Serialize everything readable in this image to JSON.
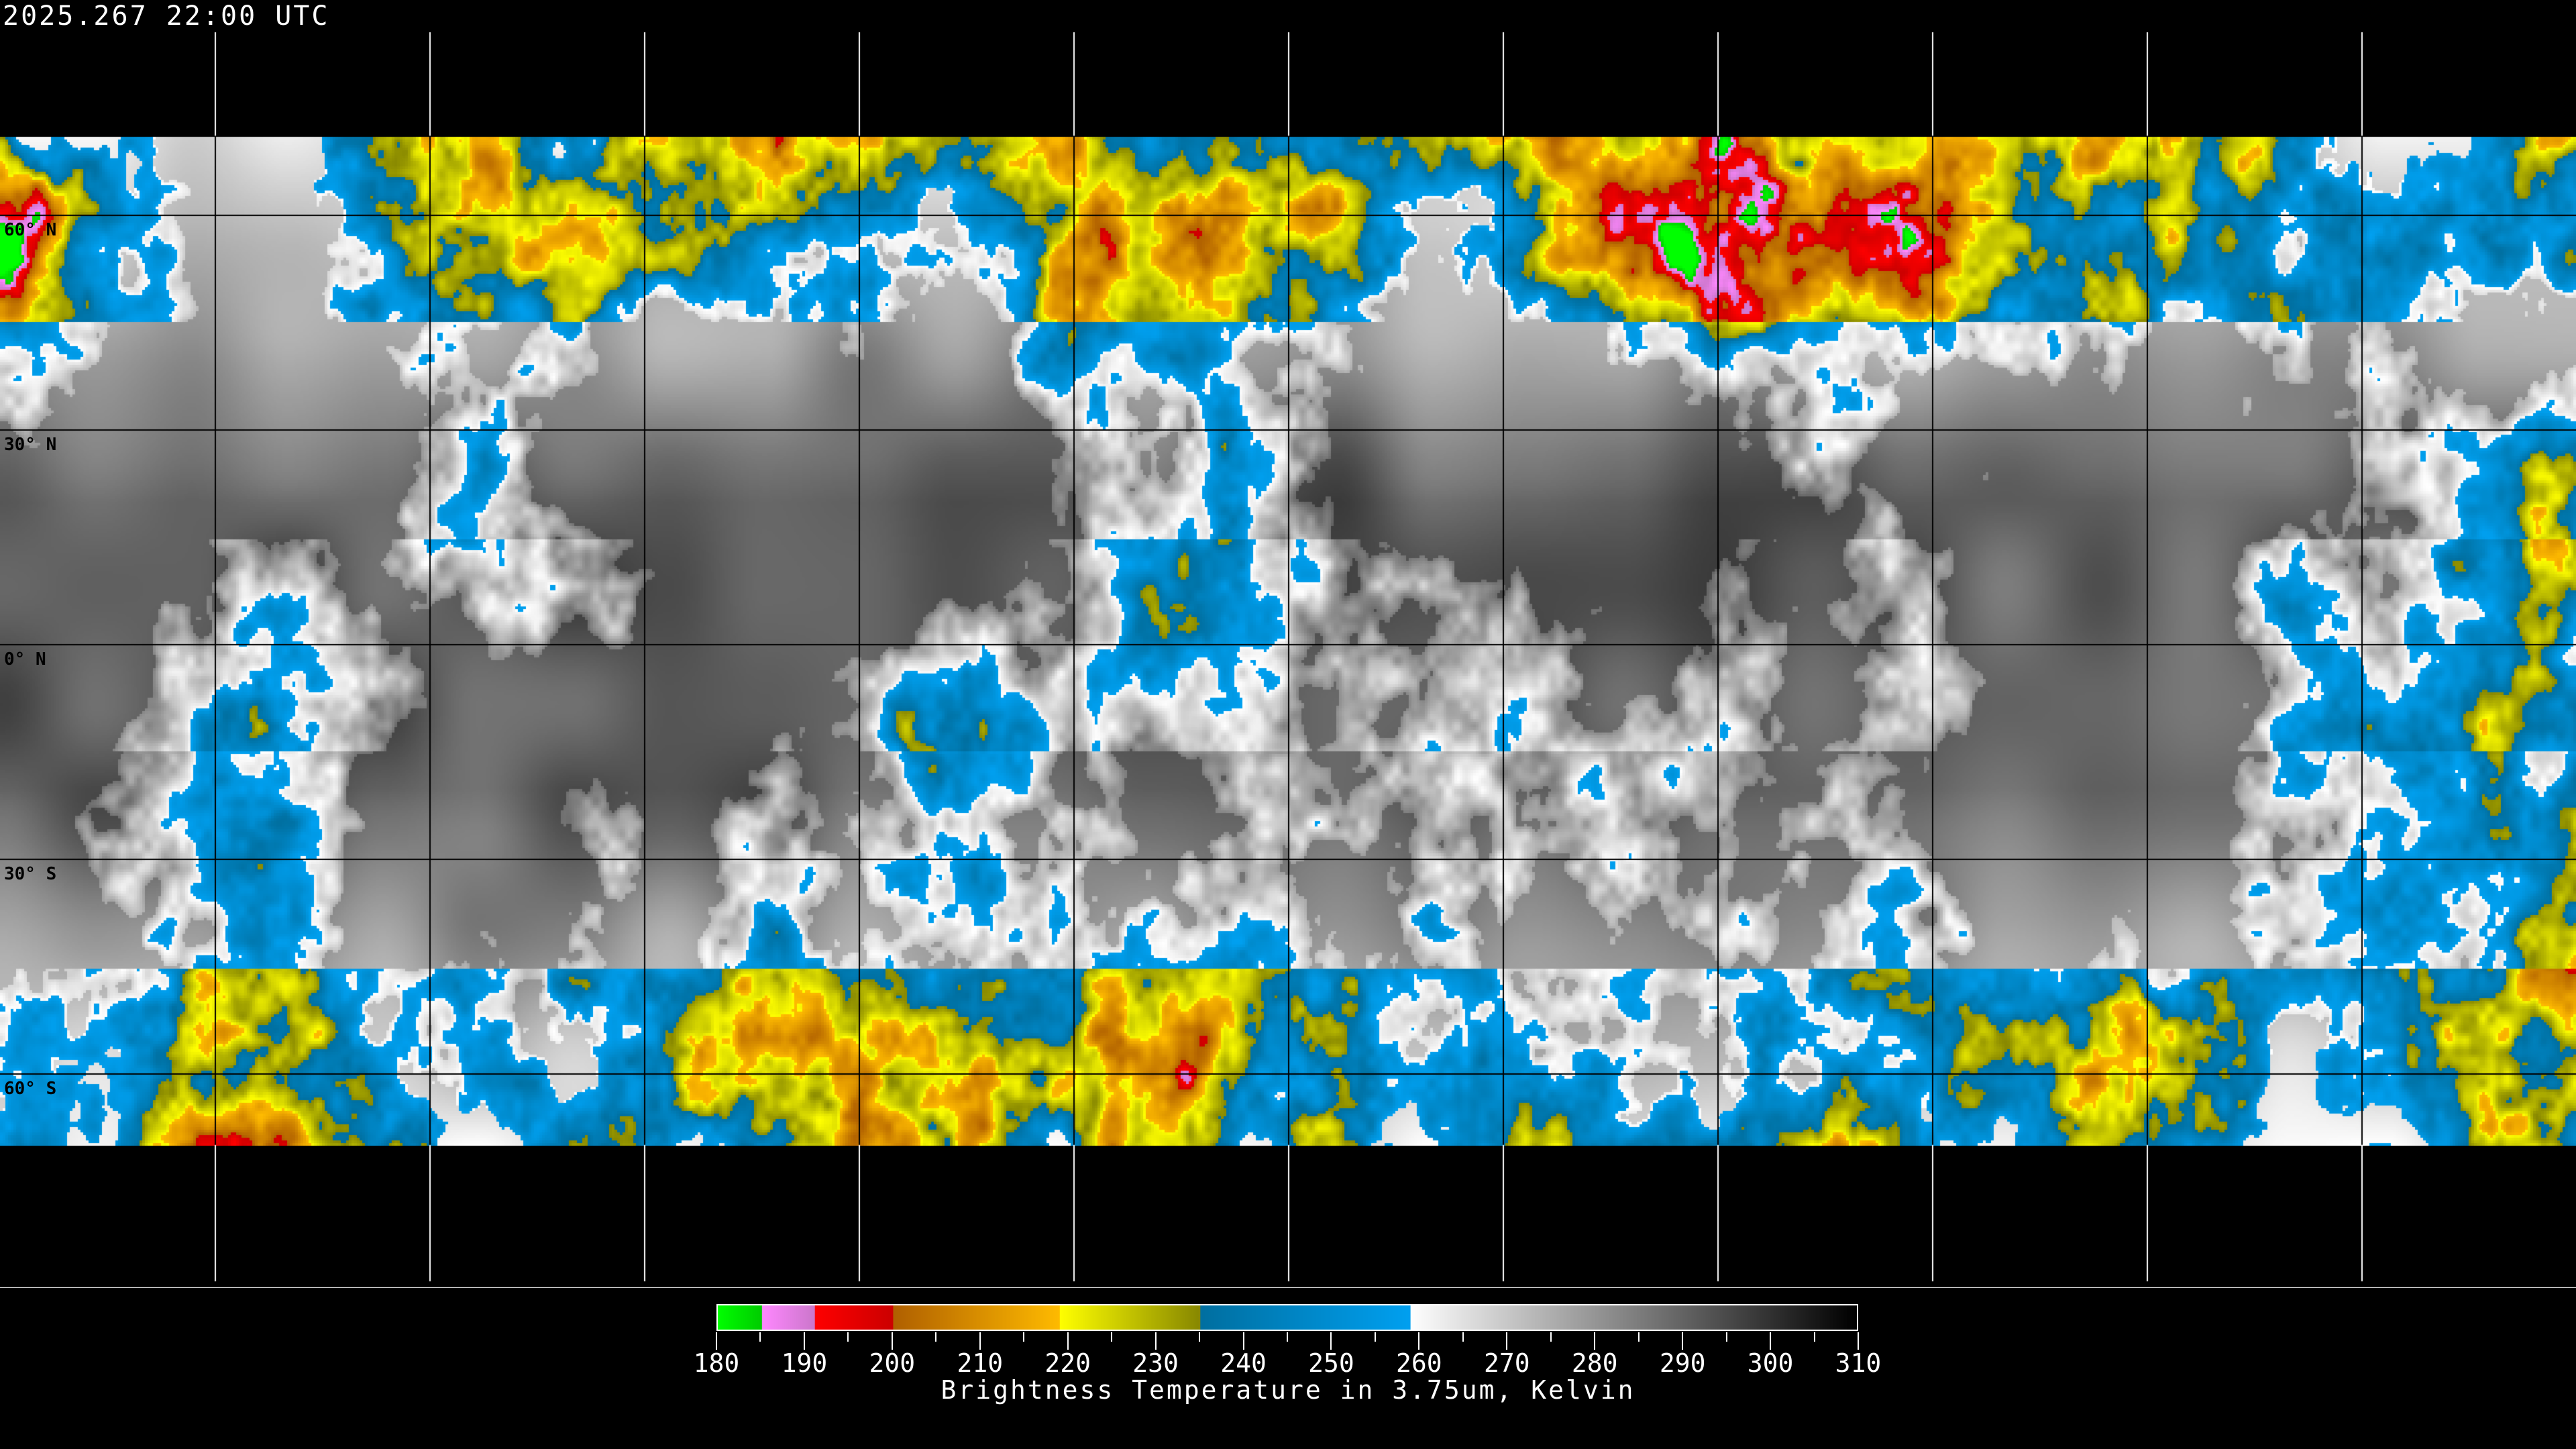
{
  "title": "2025.267 22:00 UTC",
  "latitude_labels": [
    {
      "lat": 60,
      "text": "60° N"
    },
    {
      "lat": 30,
      "text": "30° N"
    },
    {
      "lat": 0,
      "text": "0° N"
    },
    {
      "lat": -30,
      "text": "30° S"
    },
    {
      "lat": -60,
      "text": "60° S"
    }
  ],
  "grid": {
    "lon_step_deg": 30,
    "lat_step_deg": 30
  },
  "colorbar": {
    "min": 180,
    "max": 310,
    "ticks": [
      "180",
      "190",
      "200",
      "210",
      "220",
      "230",
      "240",
      "250",
      "260",
      "270",
      "280",
      "290",
      "300",
      "310"
    ],
    "caption": "Brightness Temperature in 3.75um, Kelvin",
    "segments": [
      {
        "from": 180,
        "to": 185,
        "c0": "#00ff00",
        "c1": "#00cc00"
      },
      {
        "from": 185,
        "to": 191,
        "c0": "#ff88ff",
        "c1": "#cc77cc"
      },
      {
        "from": 191,
        "to": 200,
        "c0": "#ff0000",
        "c1": "#cc0000"
      },
      {
        "from": 200,
        "to": 219,
        "c0": "#b06000",
        "c1": "#ffbb00"
      },
      {
        "from": 219,
        "to": 235,
        "c0": "#ffff00",
        "c1": "#888800"
      },
      {
        "from": 235,
        "to": 259,
        "c0": "#006fa0",
        "c1": "#00a0f0"
      },
      {
        "from": 259,
        "to": 310,
        "c0": "#ffffff",
        "c1": "#000000"
      }
    ]
  }
}
